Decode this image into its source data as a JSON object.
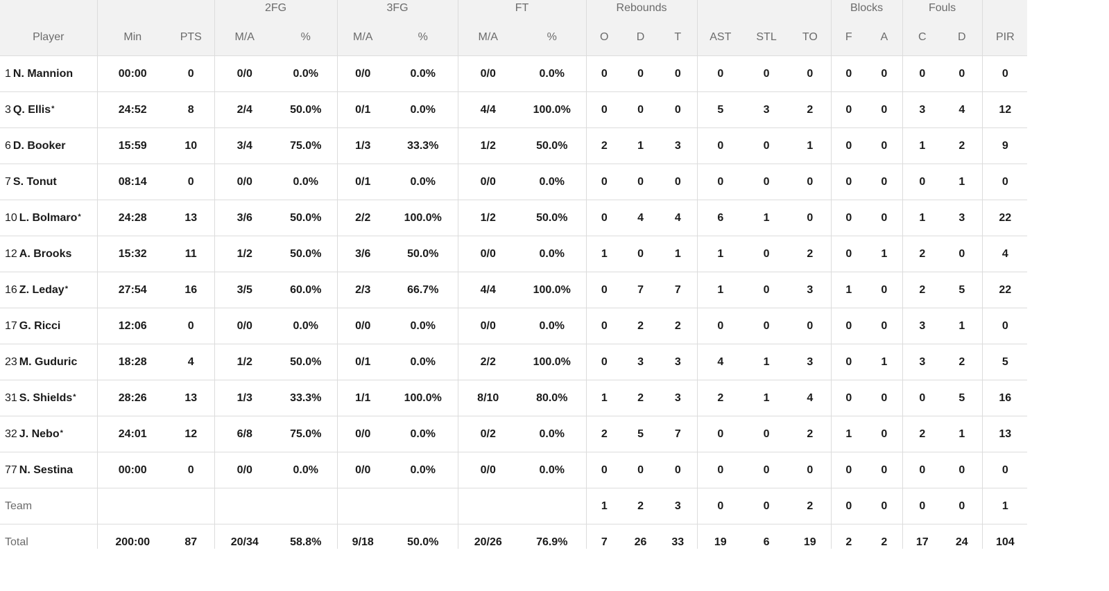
{
  "header": {
    "groups": {
      "fg2": "2FG",
      "fg3": "3FG",
      "ft": "FT",
      "rebounds": "Rebounds",
      "blocks": "Blocks",
      "fouls": "Fouls"
    },
    "columns": {
      "player": "Player",
      "min": "Min",
      "pts": "PTS",
      "fg2_ma": "M/A",
      "fg2_pct": "%",
      "fg3_ma": "M/A",
      "fg3_pct": "%",
      "ft_ma": "M/A",
      "ft_pct": "%",
      "reb_o": "O",
      "reb_d": "D",
      "reb_t": "T",
      "ast": "AST",
      "stl": "STL",
      "to": "TO",
      "blk_f": "F",
      "blk_a": "A",
      "foul_c": "C",
      "foul_d": "D",
      "pir": "PIR"
    }
  },
  "players": [
    {
      "num": "1",
      "name": "N. Mannion",
      "starter": "",
      "min": "00:00",
      "pts": "0",
      "fg2_ma": "0/0",
      "fg2_pct": "0.0%",
      "fg3_ma": "0/0",
      "fg3_pct": "0.0%",
      "ft_ma": "0/0",
      "ft_pct": "0.0%",
      "reb_o": "0",
      "reb_d": "0",
      "reb_t": "0",
      "ast": "0",
      "stl": "0",
      "to": "0",
      "blk_f": "0",
      "blk_a": "0",
      "foul_c": "0",
      "foul_d": "0",
      "pir": "0"
    },
    {
      "num": "3",
      "name": "Q. Ellis",
      "starter": "*",
      "min": "24:52",
      "pts": "8",
      "fg2_ma": "2/4",
      "fg2_pct": "50.0%",
      "fg3_ma": "0/1",
      "fg3_pct": "0.0%",
      "ft_ma": "4/4",
      "ft_pct": "100.0%",
      "reb_o": "0",
      "reb_d": "0",
      "reb_t": "0",
      "ast": "5",
      "stl": "3",
      "to": "2",
      "blk_f": "0",
      "blk_a": "0",
      "foul_c": "3",
      "foul_d": "4",
      "pir": "12"
    },
    {
      "num": "6",
      "name": "D. Booker",
      "starter": "",
      "min": "15:59",
      "pts": "10",
      "fg2_ma": "3/4",
      "fg2_pct": "75.0%",
      "fg3_ma": "1/3",
      "fg3_pct": "33.3%",
      "ft_ma": "1/2",
      "ft_pct": "50.0%",
      "reb_o": "2",
      "reb_d": "1",
      "reb_t": "3",
      "ast": "0",
      "stl": "0",
      "to": "1",
      "blk_f": "0",
      "blk_a": "0",
      "foul_c": "1",
      "foul_d": "2",
      "pir": "9"
    },
    {
      "num": "7",
      "name": "S. Tonut",
      "starter": "",
      "min": "08:14",
      "pts": "0",
      "fg2_ma": "0/0",
      "fg2_pct": "0.0%",
      "fg3_ma": "0/1",
      "fg3_pct": "0.0%",
      "ft_ma": "0/0",
      "ft_pct": "0.0%",
      "reb_o": "0",
      "reb_d": "0",
      "reb_t": "0",
      "ast": "0",
      "stl": "0",
      "to": "0",
      "blk_f": "0",
      "blk_a": "0",
      "foul_c": "0",
      "foul_d": "1",
      "pir": "0"
    },
    {
      "num": "10",
      "name": "L. Bolmaro",
      "starter": "*",
      "min": "24:28",
      "pts": "13",
      "fg2_ma": "3/6",
      "fg2_pct": "50.0%",
      "fg3_ma": "2/2",
      "fg3_pct": "100.0%",
      "ft_ma": "1/2",
      "ft_pct": "50.0%",
      "reb_o": "0",
      "reb_d": "4",
      "reb_t": "4",
      "ast": "6",
      "stl": "1",
      "to": "0",
      "blk_f": "0",
      "blk_a": "0",
      "foul_c": "1",
      "foul_d": "3",
      "pir": "22"
    },
    {
      "num": "12",
      "name": "A. Brooks",
      "starter": "",
      "min": "15:32",
      "pts": "11",
      "fg2_ma": "1/2",
      "fg2_pct": "50.0%",
      "fg3_ma": "3/6",
      "fg3_pct": "50.0%",
      "ft_ma": "0/0",
      "ft_pct": "0.0%",
      "reb_o": "1",
      "reb_d": "0",
      "reb_t": "1",
      "ast": "1",
      "stl": "0",
      "to": "2",
      "blk_f": "0",
      "blk_a": "1",
      "foul_c": "2",
      "foul_d": "0",
      "pir": "4"
    },
    {
      "num": "16",
      "name": "Z. Leday",
      "starter": "*",
      "min": "27:54",
      "pts": "16",
      "fg2_ma": "3/5",
      "fg2_pct": "60.0%",
      "fg3_ma": "2/3",
      "fg3_pct": "66.7%",
      "ft_ma": "4/4",
      "ft_pct": "100.0%",
      "reb_o": "0",
      "reb_d": "7",
      "reb_t": "7",
      "ast": "1",
      "stl": "0",
      "to": "3",
      "blk_f": "1",
      "blk_a": "0",
      "foul_c": "2",
      "foul_d": "5",
      "pir": "22"
    },
    {
      "num": "17",
      "name": "G. Ricci",
      "starter": "",
      "min": "12:06",
      "pts": "0",
      "fg2_ma": "0/0",
      "fg2_pct": "0.0%",
      "fg3_ma": "0/0",
      "fg3_pct": "0.0%",
      "ft_ma": "0/0",
      "ft_pct": "0.0%",
      "reb_o": "0",
      "reb_d": "2",
      "reb_t": "2",
      "ast": "0",
      "stl": "0",
      "to": "0",
      "blk_f": "0",
      "blk_a": "0",
      "foul_c": "3",
      "foul_d": "1",
      "pir": "0"
    },
    {
      "num": "23",
      "name": "M. Guduric",
      "starter": "",
      "min": "18:28",
      "pts": "4",
      "fg2_ma": "1/2",
      "fg2_pct": "50.0%",
      "fg3_ma": "0/1",
      "fg3_pct": "0.0%",
      "ft_ma": "2/2",
      "ft_pct": "100.0%",
      "reb_o": "0",
      "reb_d": "3",
      "reb_t": "3",
      "ast": "4",
      "stl": "1",
      "to": "3",
      "blk_f": "0",
      "blk_a": "1",
      "foul_c": "3",
      "foul_d": "2",
      "pir": "5"
    },
    {
      "num": "31",
      "name": "S. Shields",
      "starter": "*",
      "min": "28:26",
      "pts": "13",
      "fg2_ma": "1/3",
      "fg2_pct": "33.3%",
      "fg3_ma": "1/1",
      "fg3_pct": "100.0%",
      "ft_ma": "8/10",
      "ft_pct": "80.0%",
      "reb_o": "1",
      "reb_d": "2",
      "reb_t": "3",
      "ast": "2",
      "stl": "1",
      "to": "4",
      "blk_f": "0",
      "blk_a": "0",
      "foul_c": "0",
      "foul_d": "5",
      "pir": "16"
    },
    {
      "num": "32",
      "name": "J. Nebo",
      "starter": "*",
      "min": "24:01",
      "pts": "12",
      "fg2_ma": "6/8",
      "fg2_pct": "75.0%",
      "fg3_ma": "0/0",
      "fg3_pct": "0.0%",
      "ft_ma": "0/2",
      "ft_pct": "0.0%",
      "reb_o": "2",
      "reb_d": "5",
      "reb_t": "7",
      "ast": "0",
      "stl": "0",
      "to": "2",
      "blk_f": "1",
      "blk_a": "0",
      "foul_c": "2",
      "foul_d": "1",
      "pir": "13"
    },
    {
      "num": "77",
      "name": "N. Sestina",
      "starter": "",
      "min": "00:00",
      "pts": "0",
      "fg2_ma": "0/0",
      "fg2_pct": "0.0%",
      "fg3_ma": "0/0",
      "fg3_pct": "0.0%",
      "ft_ma": "0/0",
      "ft_pct": "0.0%",
      "reb_o": "0",
      "reb_d": "0",
      "reb_t": "0",
      "ast": "0",
      "stl": "0",
      "to": "0",
      "blk_f": "0",
      "blk_a": "0",
      "foul_c": "0",
      "foul_d": "0",
      "pir": "0"
    }
  ],
  "team": {
    "label": "Team",
    "min": "",
    "pts": "",
    "fg2_ma": "",
    "fg2_pct": "",
    "fg3_ma": "",
    "fg3_pct": "",
    "ft_ma": "",
    "ft_pct": "",
    "reb_o": "1",
    "reb_d": "2",
    "reb_t": "3",
    "ast": "0",
    "stl": "0",
    "to": "2",
    "blk_f": "0",
    "blk_a": "0",
    "foul_c": "0",
    "foul_d": "0",
    "pir": "1"
  },
  "total": {
    "label": "Total",
    "min": "200:00",
    "pts": "87",
    "fg2_ma": "20/34",
    "fg2_pct": "58.8%",
    "fg3_ma": "9/18",
    "fg3_pct": "50.0%",
    "ft_ma": "20/26",
    "ft_pct": "76.9%",
    "reb_o": "7",
    "reb_d": "26",
    "reb_t": "33",
    "ast": "19",
    "stl": "6",
    "to": "19",
    "blk_f": "2",
    "blk_a": "2",
    "foul_c": "17",
    "foul_d": "24",
    "pir": "104"
  }
}
